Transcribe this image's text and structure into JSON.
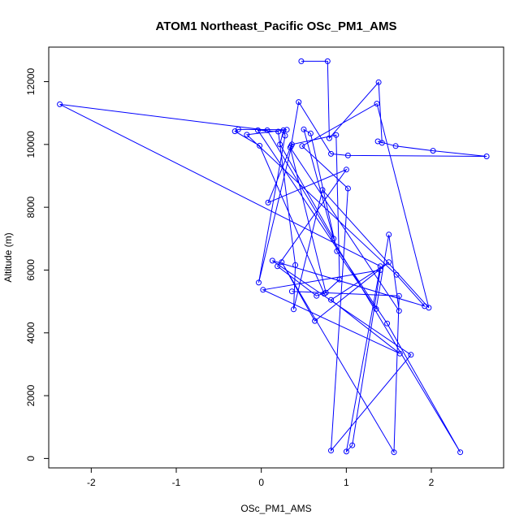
{
  "chart_data": {
    "type": "line",
    "title": "ATOM1 Northeast_Pacific OSc_PM1_AMS",
    "xlabel": "OSc_PM1_AMS",
    "ylabel": "Altitude (m)",
    "xlim": [
      -2.5,
      2.85
    ],
    "ylim": [
      -300,
      13100
    ],
    "xticks": [
      -2,
      -1,
      0,
      1,
      2
    ],
    "yticks": [
      0,
      2000,
      4000,
      6000,
      8000,
      10000,
      12000
    ],
    "grid": false,
    "legend": "none",
    "series": [
      {
        "color": "#0000ff",
        "markers": "open-circle",
        "points": [
          [
            0.47,
            12650
          ],
          [
            0.78,
            12650
          ],
          [
            0.8,
            10200
          ],
          [
            1.38,
            11980
          ],
          [
            1.42,
            10050
          ],
          [
            1.37,
            10100
          ],
          [
            1.58,
            9950
          ],
          [
            2.02,
            9800
          ],
          [
            2.65,
            9620
          ],
          [
            1.02,
            9650
          ],
          [
            0.82,
            9700
          ],
          [
            0.44,
            11350
          ],
          [
            0.35,
            9950
          ],
          [
            0.08,
            8150
          ],
          [
            1.0,
            9200
          ],
          [
            0.19,
            6120
          ],
          [
            0.65,
            5180
          ],
          [
            0.76,
            5280
          ],
          [
            0.34,
            9900
          ],
          [
            1.62,
            4700
          ],
          [
            1.5,
            7130
          ],
          [
            1.35,
            4760
          ],
          [
            0.89,
            6600
          ],
          [
            0.58,
            10350
          ],
          [
            0.5,
            10480
          ],
          [
            0.85,
            7000
          ],
          [
            0.22,
            10000
          ],
          [
            0.26,
            10450
          ],
          [
            0.28,
            10280
          ],
          [
            -0.03,
            5600
          ],
          [
            0.36,
            10000
          ],
          [
            0.88,
            10300
          ],
          [
            0.92,
            5700
          ],
          [
            0.74,
            5250
          ],
          [
            -0.02,
            9960
          ],
          [
            -0.31,
            10420
          ],
          [
            -0.27,
            10480
          ],
          [
            0.3,
            10470
          ],
          [
            -0.17,
            10310
          ],
          [
            1.59,
            5850
          ],
          [
            1.92,
            4850
          ],
          [
            0.13,
            6300
          ],
          [
            1.76,
            3300
          ],
          [
            0.82,
            250
          ],
          [
            1.02,
            8600
          ],
          [
            0.48,
            9950
          ],
          [
            1.36,
            11300
          ],
          [
            1.97,
            4800
          ],
          [
            0.72,
            8550
          ],
          [
            0.38,
            4750
          ],
          [
            0.4,
            6160
          ],
          [
            0.2,
            10410
          ],
          [
            -0.04,
            10450
          ],
          [
            1.48,
            4300
          ],
          [
            2.34,
            200
          ],
          [
            0.07,
            10450
          ],
          [
            -2.37,
            11280
          ],
          [
            1.4,
            6120
          ],
          [
            1.0,
            220
          ],
          [
            1.07,
            420
          ],
          [
            1.4,
            6000
          ],
          [
            0.02,
            5370
          ],
          [
            1.63,
            3340
          ],
          [
            0.82,
            5050
          ],
          [
            1.5,
            6250
          ],
          [
            0.63,
            4380
          ],
          [
            0.24,
            6250
          ],
          [
            1.56,
            200
          ],
          [
            1.62,
            5180
          ],
          [
            0.36,
            5320
          ]
        ]
      }
    ]
  }
}
